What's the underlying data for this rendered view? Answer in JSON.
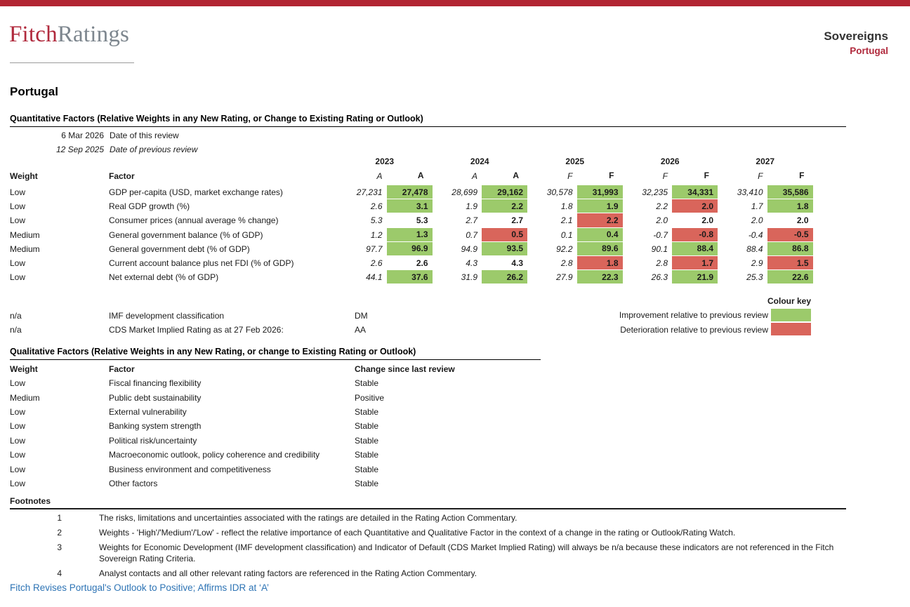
{
  "brand": {
    "fitch": "Fitch",
    "ratings": "Ratings"
  },
  "header": {
    "sector": "Sovereigns",
    "country": "Portugal"
  },
  "page_title": "Portugal",
  "quantitative": {
    "heading": "Quantitative Factors (Relative Weights in any New Rating, or Change to Existing Rating or Outlook)",
    "dates": [
      {
        "date": "6 Mar 2026",
        "label": "Date of this review"
      },
      {
        "date": "12 Sep 2025",
        "label": "Date of previous review"
      }
    ],
    "weight_header": "Weight",
    "factor_header": "Factor",
    "years": [
      {
        "year": "2023",
        "prev_type": "A",
        "curr_type": "A"
      },
      {
        "year": "2024",
        "prev_type": "A",
        "curr_type": "A"
      },
      {
        "year": "2025",
        "prev_type": "F",
        "curr_type": "F"
      },
      {
        "year": "2026",
        "prev_type": "F",
        "curr_type": "F"
      },
      {
        "year": "2027",
        "prev_type": "F",
        "curr_type": "F"
      }
    ],
    "rows": [
      {
        "weight": "Low",
        "factor": "GDP per-capita (USD, market exchange rates)",
        "values": [
          {
            "prev": "27,231",
            "curr": "27,478",
            "change": "improvement"
          },
          {
            "prev": "28,699",
            "curr": "29,162",
            "change": "improvement"
          },
          {
            "prev": "30,578",
            "curr": "31,993",
            "change": "improvement"
          },
          {
            "prev": "32,235",
            "curr": "34,331",
            "change": "improvement"
          },
          {
            "prev": "33,410",
            "curr": "35,586",
            "change": "improvement"
          }
        ]
      },
      {
        "weight": "Low",
        "factor": "Real GDP growth (%)",
        "values": [
          {
            "prev": "2.6",
            "curr": "3.1",
            "change": "improvement"
          },
          {
            "prev": "1.9",
            "curr": "2.2",
            "change": "improvement"
          },
          {
            "prev": "1.8",
            "curr": "1.9",
            "change": "improvement"
          },
          {
            "prev": "2.2",
            "curr": "2.0",
            "change": "deterioration"
          },
          {
            "prev": "1.7",
            "curr": "1.8",
            "change": "improvement"
          }
        ]
      },
      {
        "weight": "Low",
        "factor": "Consumer prices (annual average % change)",
        "values": [
          {
            "prev": "5.3",
            "curr": "5.3",
            "change": "none"
          },
          {
            "prev": "2.7",
            "curr": "2.7",
            "change": "none"
          },
          {
            "prev": "2.1",
            "curr": "2.2",
            "change": "deterioration"
          },
          {
            "prev": "2.0",
            "curr": "2.0",
            "change": "none"
          },
          {
            "prev": "2.0",
            "curr": "2.0",
            "change": "none"
          }
        ]
      },
      {
        "weight": "Medium",
        "factor": "General government balance (% of GDP)",
        "values": [
          {
            "prev": "1.2",
            "curr": "1.3",
            "change": "improvement"
          },
          {
            "prev": "0.7",
            "curr": "0.5",
            "change": "deterioration"
          },
          {
            "prev": "0.1",
            "curr": "0.4",
            "change": "improvement"
          },
          {
            "prev": "-0.7",
            "curr": "-0.8",
            "change": "deterioration"
          },
          {
            "prev": "-0.4",
            "curr": "-0.5",
            "change": "deterioration"
          }
        ]
      },
      {
        "weight": "Medium",
        "factor": "General government debt (% of GDP)",
        "values": [
          {
            "prev": "97.7",
            "curr": "96.9",
            "change": "improvement"
          },
          {
            "prev": "94.9",
            "curr": "93.5",
            "change": "improvement"
          },
          {
            "prev": "92.2",
            "curr": "89.6",
            "change": "improvement"
          },
          {
            "prev": "90.1",
            "curr": "88.4",
            "change": "improvement"
          },
          {
            "prev": "88.4",
            "curr": "86.8",
            "change": "improvement"
          }
        ]
      },
      {
        "weight": "Low",
        "factor": "Current account balance plus net FDI (% of GDP)",
        "values": [
          {
            "prev": "2.6",
            "curr": "2.6",
            "change": "none"
          },
          {
            "prev": "4.3",
            "curr": "4.3",
            "change": "none"
          },
          {
            "prev": "2.8",
            "curr": "1.8",
            "change": "deterioration"
          },
          {
            "prev": "2.8",
            "curr": "1.7",
            "change": "deterioration"
          },
          {
            "prev": "2.9",
            "curr": "1.5",
            "change": "deterioration"
          }
        ]
      },
      {
        "weight": "Low",
        "factor": "Net external debt (% of GDP)",
        "values": [
          {
            "prev": "44.1",
            "curr": "37.6",
            "change": "improvement"
          },
          {
            "prev": "31.9",
            "curr": "26.2",
            "change": "improvement"
          },
          {
            "prev": "27.9",
            "curr": "22.3",
            "change": "improvement"
          },
          {
            "prev": "26.3",
            "curr": "21.9",
            "change": "improvement"
          },
          {
            "prev": "25.3",
            "curr": "22.6",
            "change": "improvement"
          }
        ]
      }
    ],
    "extra_rows": [
      {
        "weight": "n/a",
        "factor": "IMF development classification",
        "value": "DM"
      },
      {
        "weight": "n/a",
        "factor": "CDS Market Implied Rating as at 27 Feb 2026:",
        "value": "AA"
      }
    ]
  },
  "colour_key": {
    "title": "Colour key",
    "entries": [
      {
        "label": "Improvement relative to previous review",
        "color": "#9cca6b"
      },
      {
        "label": "Deterioration relative to previous review",
        "color": "#d9655b"
      }
    ]
  },
  "qualitative": {
    "heading": "Qualitative Factors (Relative Weights in any New Rating, or change to Existing Rating or Outlook)",
    "weight_header": "Weight",
    "factor_header": "Factor",
    "change_header": "Change since last review",
    "rows": [
      {
        "weight": "Low",
        "factor": "Fiscal financing flexibility",
        "change": "Stable"
      },
      {
        "weight": "Medium",
        "factor": "Public debt sustainability",
        "change": "Positive"
      },
      {
        "weight": "Low",
        "factor": "External vulnerability",
        "change": "Stable"
      },
      {
        "weight": "Low",
        "factor": "Banking system strength",
        "change": "Stable"
      },
      {
        "weight": "Low",
        "factor": "Political risk/uncertainty",
        "change": "Stable"
      },
      {
        "weight": "Low",
        "factor": "Macroeconomic outlook, policy coherence and credibility",
        "change": "Stable"
      },
      {
        "weight": "Low",
        "factor": "Business environment and competitiveness",
        "change": "Stable"
      },
      {
        "weight": "Low",
        "factor": "Other factors",
        "change": "Stable"
      }
    ]
  },
  "footnotes": {
    "title": "Footnotes",
    "items": [
      {
        "num": "1",
        "text": "The risks, limitations and uncertainties associated with the ratings are detailed in the Rating Action Commentary."
      },
      {
        "num": "2",
        "text": "Weights - 'High'/'Medium'/'Low' - reflect the relative importance of each Quantitative and Qualitative Factor in the context of a change in the rating or Outlook/Rating Watch."
      },
      {
        "num": "3",
        "text": "Weights for Economic Development (IMF development classification) and Indicator of Default (CDS Market Implied Rating) will always be n/a because these indicators are not referenced in the Fitch Sovereign Rating Criteria."
      },
      {
        "num": "4",
        "text": "Analyst contacts and all other relevant rating factors are referenced in the Rating Action Commentary."
      }
    ]
  },
  "link": {
    "text": "Fitch Revises Portugal's Outlook to Positive; Affirms IDR at ‘A’"
  }
}
